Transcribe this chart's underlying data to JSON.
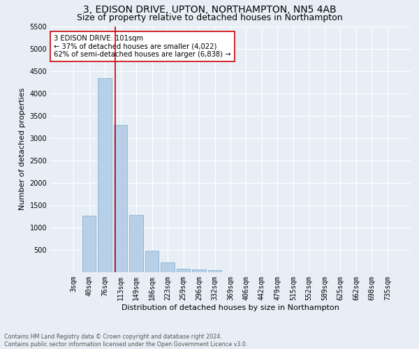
{
  "title": "3, EDISON DRIVE, UPTON, NORTHAMPTON, NN5 4AB",
  "subtitle": "Size of property relative to detached houses in Northampton",
  "xlabel": "Distribution of detached houses by size in Northampton",
  "ylabel": "Number of detached properties",
  "footnote1": "Contains HM Land Registry data © Crown copyright and database right 2024.",
  "footnote2": "Contains public sector information licensed under the Open Government Licence v3.0.",
  "bar_labels": [
    "3sqm",
    "40sqm",
    "76sqm",
    "113sqm",
    "149sqm",
    "186sqm",
    "223sqm",
    "259sqm",
    "296sqm",
    "332sqm",
    "369sqm",
    "406sqm",
    "442sqm",
    "479sqm",
    "515sqm",
    "552sqm",
    "589sqm",
    "625sqm",
    "662sqm",
    "698sqm",
    "735sqm"
  ],
  "bar_values": [
    0,
    1270,
    4330,
    3300,
    1280,
    490,
    215,
    80,
    55,
    40,
    0,
    0,
    0,
    0,
    0,
    0,
    0,
    0,
    0,
    0,
    0
  ],
  "bar_color": "#b8cfe8",
  "bar_edge_color": "#7aaad0",
  "vline_color": "#cc0000",
  "annotation_text": "3 EDISON DRIVE: 101sqm\n← 37% of detached houses are smaller (4,022)\n62% of semi-detached houses are larger (6,838) →",
  "annotation_box_color": "white",
  "annotation_box_edge": "#cc0000",
  "ylim": [
    0,
    5500
  ],
  "yticks": [
    0,
    500,
    1000,
    1500,
    2000,
    2500,
    3000,
    3500,
    4000,
    4500,
    5000,
    5500
  ],
  "bg_color": "#e8eef5",
  "plot_bg_color": "#e8eef5",
  "title_fontsize": 10,
  "subtitle_fontsize": 9,
  "axis_label_fontsize": 8,
  "tick_fontsize": 7
}
